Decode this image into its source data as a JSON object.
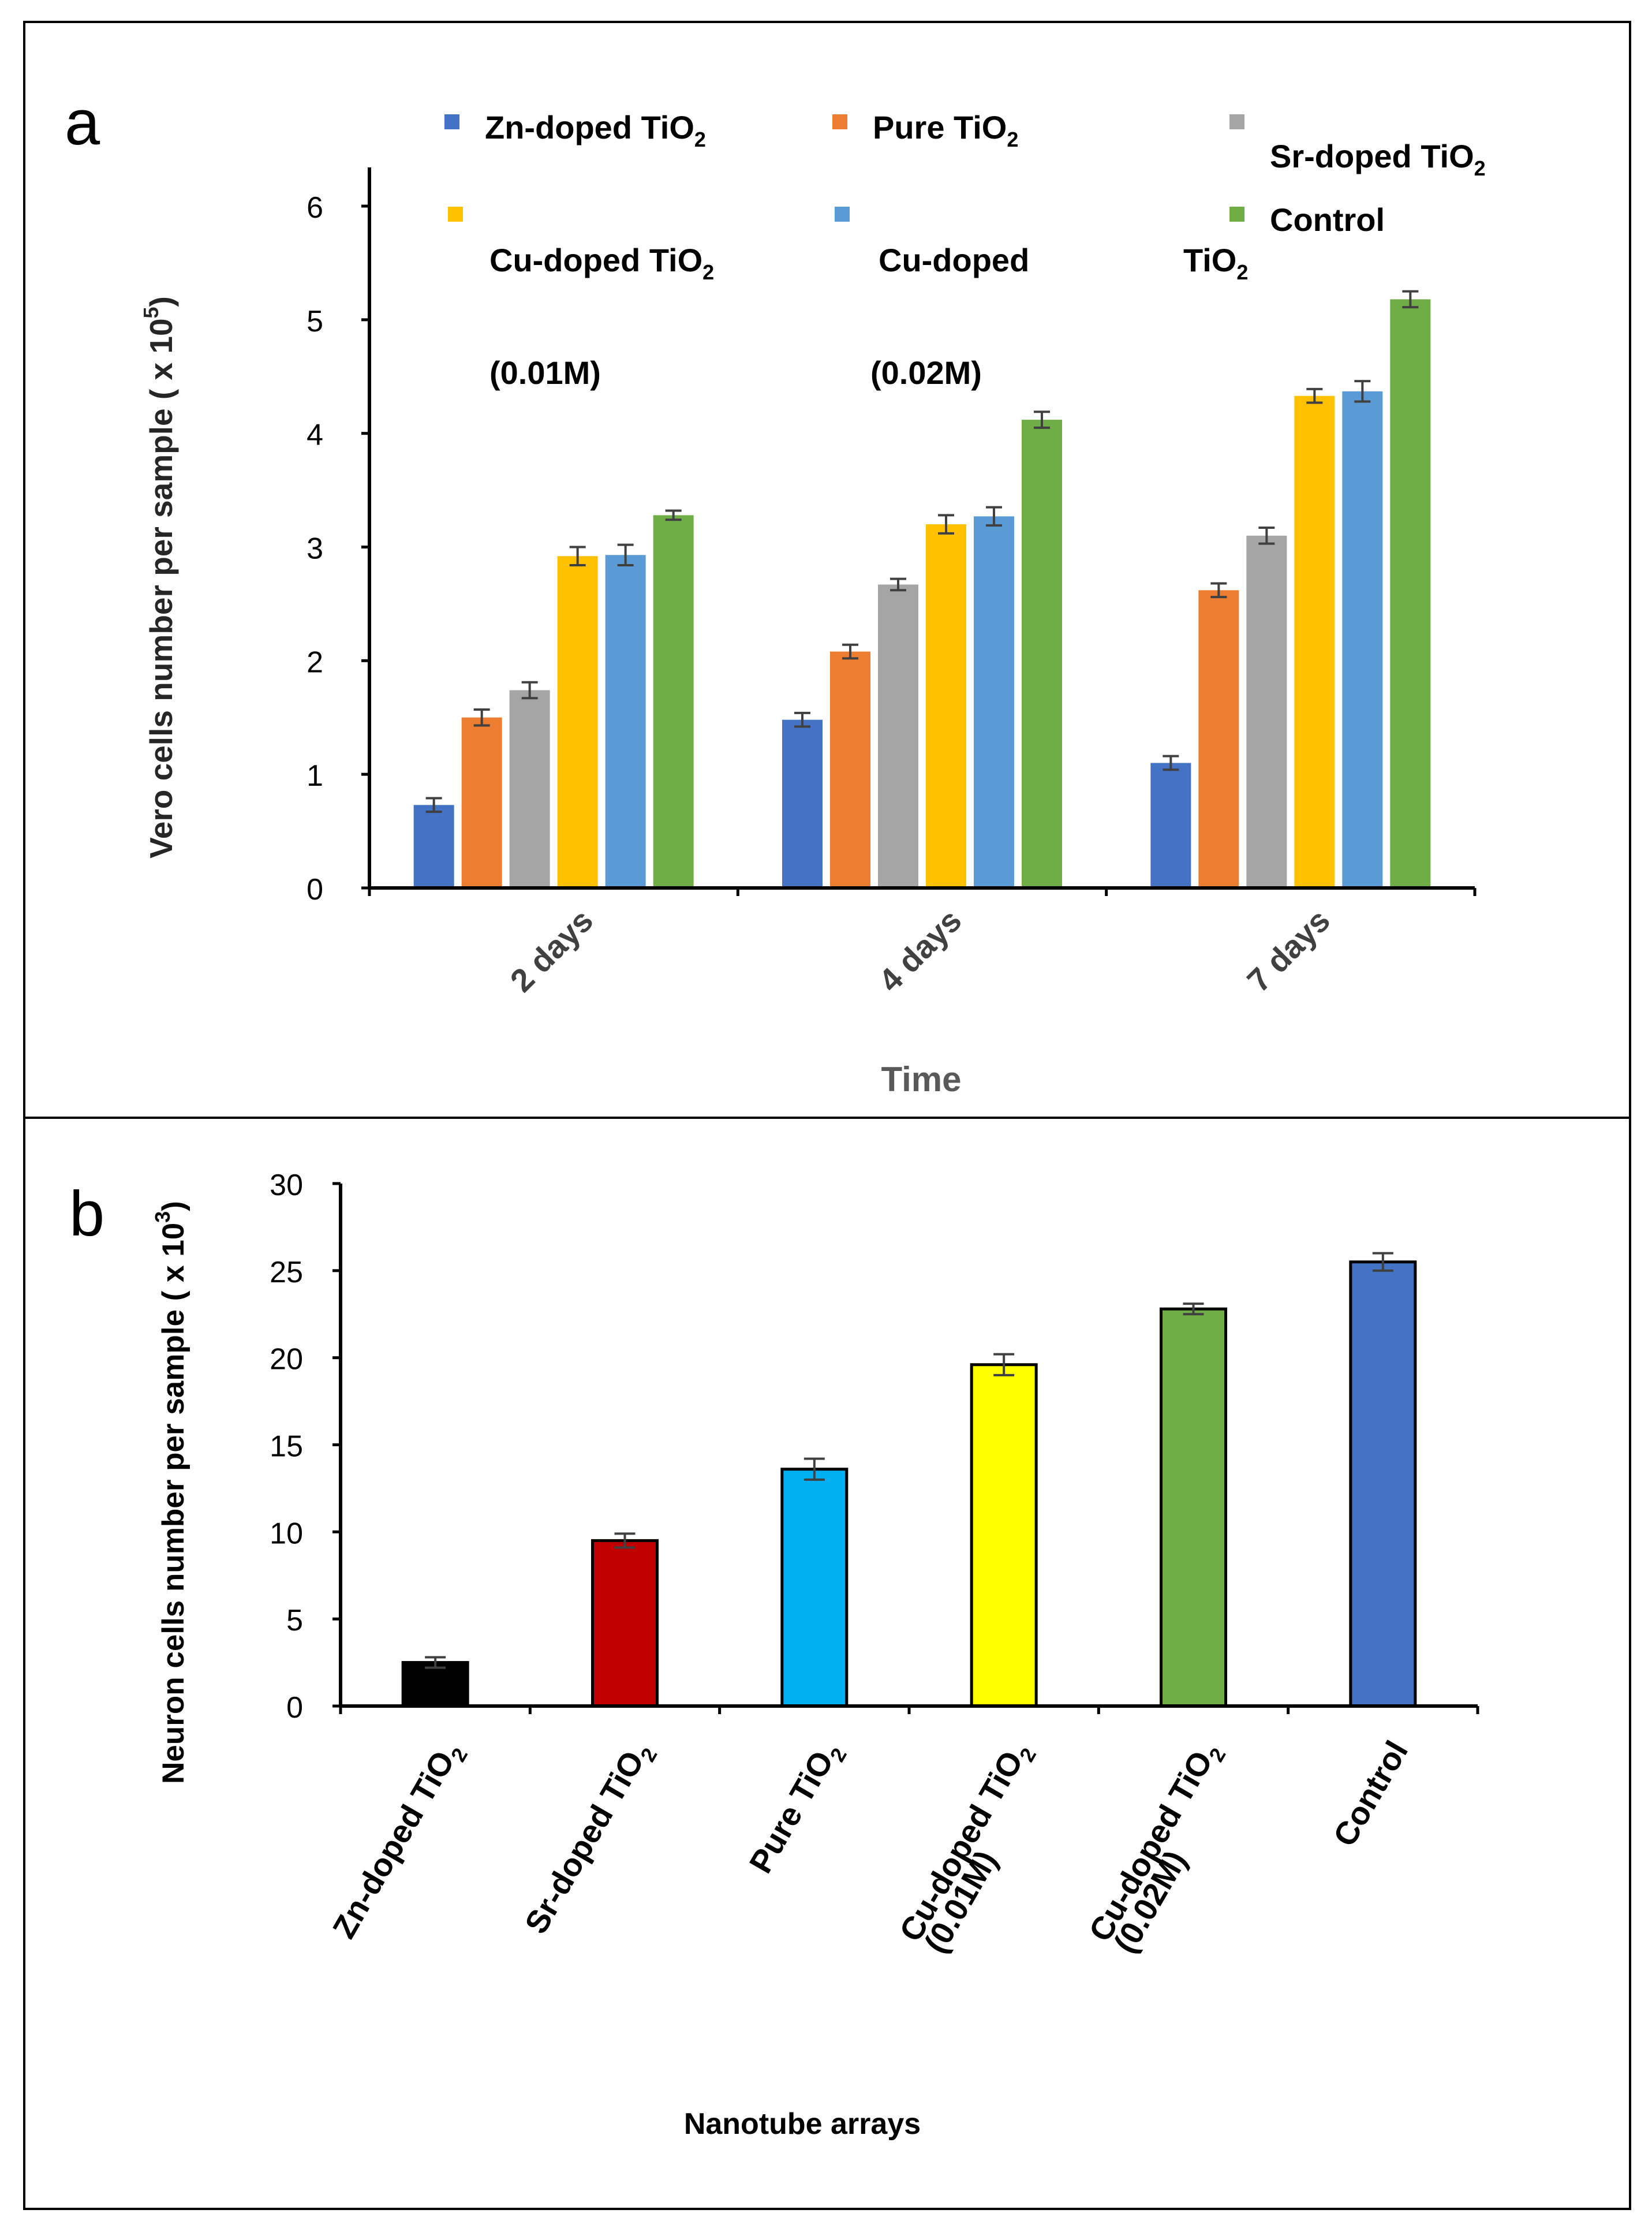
{
  "colors": {
    "zn": "#4472C4",
    "pure": "#ED7D31",
    "sr": "#A5A5A5",
    "cu1": "#FFC000",
    "cu2": "#5B9BD5",
    "control": "#70AD47",
    "b_zn": "#000000",
    "b_sr": "#C00000",
    "b_pure": "#00B0F0",
    "b_cu1": "#FFFF00",
    "b_cu2": "#70AD47",
    "b_control": "#4472C4"
  },
  "panel_a": {
    "letter": "a",
    "legend": [
      {
        "main": "Zn-doped TiO",
        "sub": "2",
        "line2": ""
      },
      {
        "main": "Pure TiO",
        "sub": "2",
        "line2": ""
      },
      {
        "main": "Sr-doped TiO",
        "sub": "2",
        "line2": ""
      },
      {
        "main": "Cu-doped  TiO",
        "sub": "2",
        "line2": "(0.01M)"
      },
      {
        "main": "Cu-doped",
        "sub": "",
        "line2": "(0.02M)"
      },
      {
        "main": "Control",
        "sub": "",
        "line2": ""
      }
    ],
    "legend_extra": {
      "main": "TiO",
      "sub": "2"
    },
    "chart_data": {
      "type": "bar",
      "title": "",
      "xlabel": "Time",
      "ylabel": "Vero cells number per sample ( x 10",
      "ylabel_sup": "5",
      "ylabel_end": ")",
      "categories": [
        "2 days",
        "4 days",
        "7 days"
      ],
      "ylim": [
        0,
        6
      ],
      "yticks": [
        0,
        1,
        2,
        3,
        4,
        5,
        6
      ],
      "series": [
        {
          "name": "Zn-doped TiO2",
          "values": [
            0.73,
            1.48,
            1.1
          ],
          "errors": [
            0.06,
            0.06,
            0.06
          ]
        },
        {
          "name": "Pure TiO2",
          "values": [
            1.5,
            2.08,
            2.62
          ],
          "errors": [
            0.07,
            0.06,
            0.06
          ]
        },
        {
          "name": "Sr-doped TiO2",
          "values": [
            1.74,
            2.67,
            3.1
          ],
          "errors": [
            0.07,
            0.05,
            0.07
          ]
        },
        {
          "name": "Cu-doped TiO2 (0.01M)",
          "values": [
            2.92,
            3.2,
            4.33
          ],
          "errors": [
            0.08,
            0.08,
            0.06
          ]
        },
        {
          "name": "Cu-doped TiO2 (0.02M)",
          "values": [
            2.93,
            3.27,
            4.37
          ],
          "errors": [
            0.09,
            0.08,
            0.09
          ]
        },
        {
          "name": "Control",
          "values": [
            3.28,
            4.12,
            5.18
          ],
          "errors": [
            0.04,
            0.07,
            0.07
          ]
        }
      ]
    }
  },
  "panel_b": {
    "letter": "b",
    "chart_data": {
      "type": "bar",
      "title": "",
      "xlabel": "Nanotube arrays",
      "ylabel": "Neuron cells number per sample ( x 10",
      "ylabel_sup": "3",
      "ylabel_end": ")",
      "categories": [
        {
          "main": "Zn-doped TiO",
          "sub": "2",
          "line2": ""
        },
        {
          "main": "Sr-doped TiO",
          "sub": "2",
          "line2": ""
        },
        {
          "main": "Pure TiO",
          "sub": "2",
          "line2": ""
        },
        {
          "main": "Cu-doped TiO",
          "sub": "2",
          "line2": "(0.01M)"
        },
        {
          "main": "Cu-doped TiO",
          "sub": "2",
          "line2": "(0.02M)"
        },
        {
          "main": "Control",
          "sub": "",
          "line2": ""
        }
      ],
      "ylim": [
        0,
        30
      ],
      "yticks": [
        0,
        5,
        10,
        15,
        20,
        25,
        30
      ],
      "values": [
        2.5,
        9.5,
        13.6,
        19.6,
        22.8,
        25.5
      ],
      "errors": [
        0.3,
        0.4,
        0.6,
        0.6,
        0.3,
        0.5
      ]
    }
  }
}
